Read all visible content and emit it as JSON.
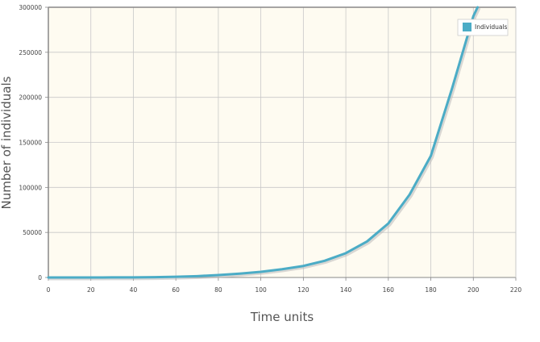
{
  "chart_data": {
    "type": "line",
    "title": "",
    "xlabel": "Time units",
    "ylabel": "Number of individuals",
    "xlim": [
      0,
      220
    ],
    "ylim": [
      0,
      300000
    ],
    "x_ticks": [
      "0",
      "20",
      "40",
      "60",
      "80",
      "100",
      "120",
      "140",
      "160",
      "180",
      "200",
      "220"
    ],
    "y_ticks": [
      "0",
      "50000",
      "100000",
      "150000",
      "200000",
      "250000",
      "300000"
    ],
    "grid": true,
    "legend_position": "top-right",
    "series": [
      {
        "name": "Individuals",
        "color": "#4bacc6",
        "x": [
          0,
          10,
          20,
          30,
          40,
          50,
          60,
          70,
          80,
          90,
          100,
          110,
          120,
          130,
          140,
          150,
          160,
          170,
          180,
          190,
          200,
          202
        ],
        "y": [
          5,
          12,
          30,
          70,
          160,
          350,
          750,
          1500,
          2700,
          4300,
          6300,
          9200,
          12800,
          18500,
          27000,
          40000,
          60000,
          92000,
          135000,
          210000,
          290000,
          300000
        ]
      }
    ]
  },
  "colors": {
    "plot_background": "#fefbf1",
    "grid": "#c8c8c8",
    "axis": "#888888",
    "series_shadow": "#b9b9b9"
  }
}
